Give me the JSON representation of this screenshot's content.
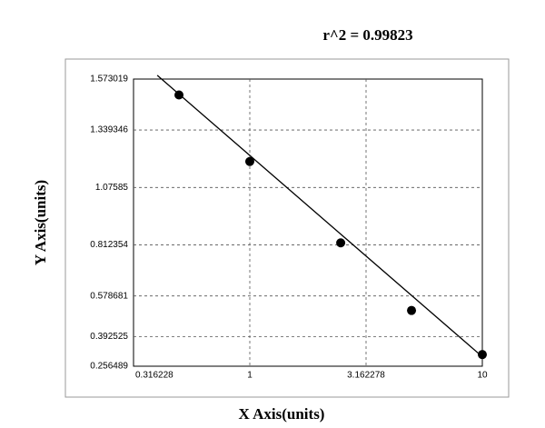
{
  "chart_data": {
    "type": "scatter",
    "title": "r^2 = 0.99823",
    "x_label": "X Axis(units)",
    "y_label": "Y Axis(units)",
    "x": [
      0.496,
      1,
      2.46,
      4.96,
      10
    ],
    "y": [
      1.5,
      1.195,
      0.822,
      0.512,
      0.31
    ],
    "fit_line": {
      "x": [
        0.4,
        10
      ],
      "y": [
        1.59,
        0.3
      ]
    },
    "color": "#000000",
    "xscale": "log",
    "grid": true,
    "xlim": [
      0.316228,
      10
    ],
    "xticks": [
      0.316228,
      1,
      3.162278,
      10
    ],
    "ylim": [
      0.256489,
      1.573019
    ],
    "yticks": [
      0.256489,
      0.392525,
      0.578681,
      0.812354,
      1.07585,
      1.339346,
      1.573019
    ]
  }
}
